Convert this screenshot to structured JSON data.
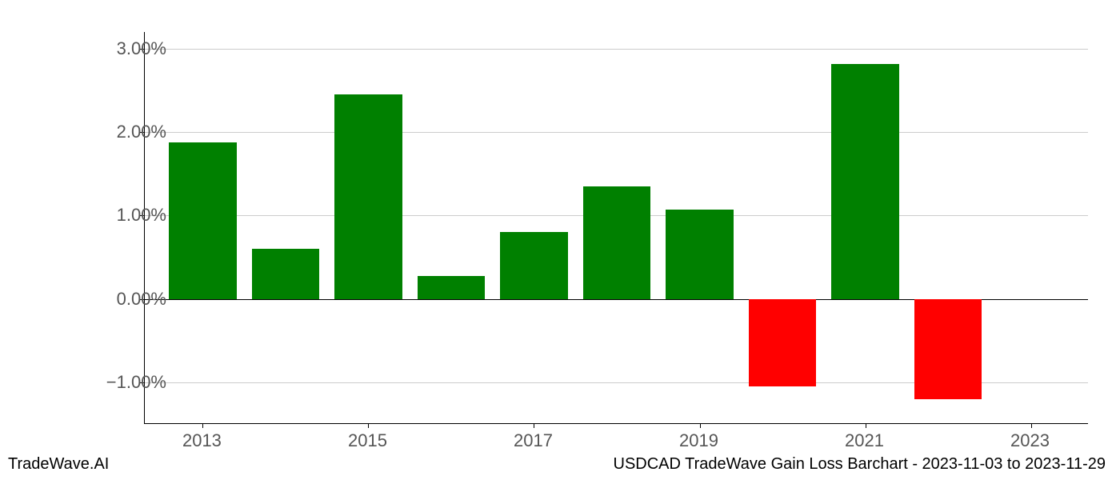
{
  "chart": {
    "type": "bar",
    "years": [
      2013,
      2014,
      2015,
      2016,
      2017,
      2018,
      2019,
      2020,
      2021,
      2022
    ],
    "values": [
      1.88,
      0.6,
      2.45,
      0.27,
      0.8,
      1.35,
      1.07,
      -1.05,
      2.82,
      -1.2
    ],
    "positive_color": "#008000",
    "negative_color": "#ff0000",
    "background_color": "#ffffff",
    "grid_color": "#cccccc",
    "axis_color": "#000000",
    "ylim_min": -1.5,
    "ylim_max": 3.2,
    "y_ticks": [
      -1.0,
      0.0,
      1.0,
      2.0,
      3.0
    ],
    "y_tick_labels": [
      "−1.00%",
      "0.00%",
      "1.00%",
      "2.00%",
      "3.00%"
    ],
    "x_ticks": [
      2013,
      2015,
      2017,
      2019,
      2021,
      2023
    ],
    "x_tick_labels": [
      "2013",
      "2015",
      "2017",
      "2019",
      "2021",
      "2023"
    ],
    "xlim_min": 2012.3,
    "xlim_max": 2023.7,
    "bar_width_years": 0.82,
    "tick_label_fontsize": 22,
    "tick_label_color": "#555555",
    "footer_fontsize": 20
  },
  "footer": {
    "left": "TradeWave.AI",
    "right": "USDCAD TradeWave Gain Loss Barchart - 2023-11-03 to 2023-11-29"
  }
}
